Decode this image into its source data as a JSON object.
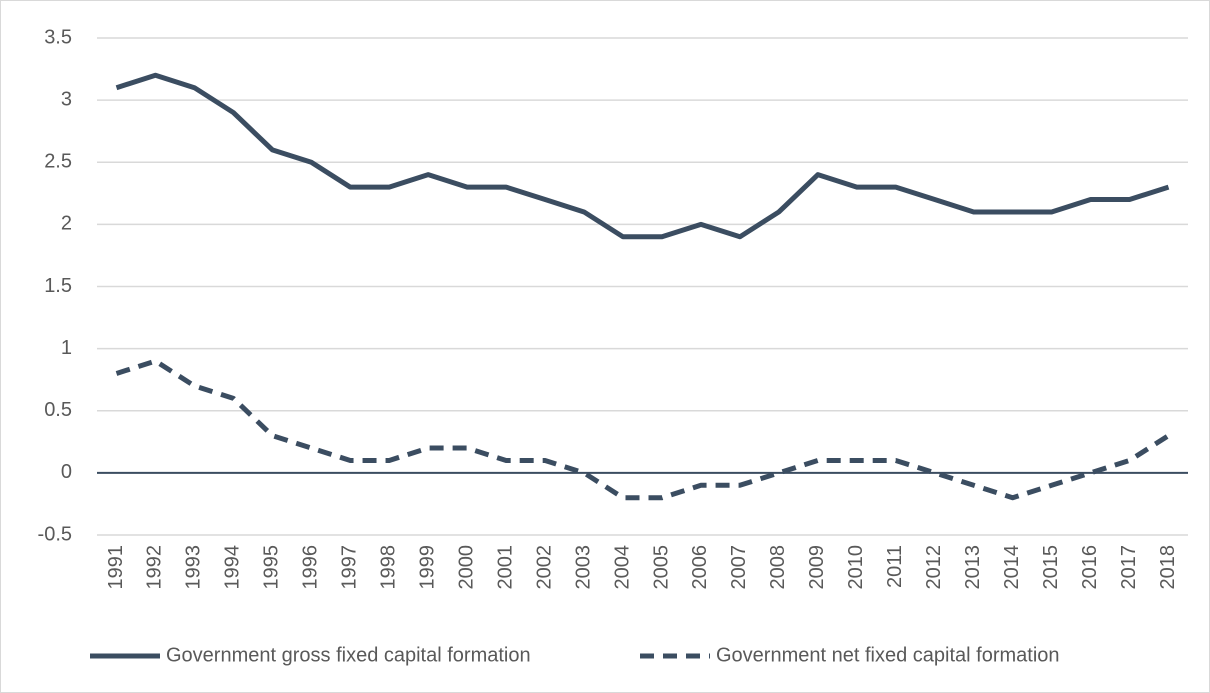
{
  "chart_data": {
    "type": "line",
    "categories": [
      "1991",
      "1992",
      "1993",
      "1994",
      "1995",
      "1996",
      "1997",
      "1998",
      "1999",
      "2000",
      "2001",
      "2002",
      "2003",
      "2004",
      "2005",
      "2006",
      "2007",
      "2008",
      "2009",
      "2010",
      "2011",
      "2012",
      "2013",
      "2014",
      "2015",
      "2016",
      "2017",
      "2018"
    ],
    "series": [
      {
        "name": "Government gross fixed capital formation",
        "color": "#3b4d61",
        "line_style": "solid",
        "values": [
          3.1,
          3.2,
          3.1,
          2.9,
          2.6,
          2.5,
          2.3,
          2.3,
          2.4,
          2.3,
          2.3,
          2.2,
          2.1,
          1.9,
          1.9,
          2.0,
          1.9,
          2.1,
          2.4,
          2.3,
          2.3,
          2.2,
          2.1,
          2.1,
          2.1,
          2.2,
          2.2,
          2.3
        ]
      },
      {
        "name": "Government net fixed capital formation",
        "color": "#3b4d61",
        "line_style": "dashed",
        "values": [
          0.8,
          0.9,
          0.7,
          0.6,
          0.3,
          0.2,
          0.1,
          0.1,
          0.2,
          0.2,
          0.1,
          0.1,
          0.0,
          -0.2,
          -0.2,
          -0.1,
          -0.1,
          0.0,
          0.1,
          0.1,
          0.1,
          0.0,
          -0.1,
          -0.2,
          -0.1,
          0.0,
          0.1,
          0.3
        ]
      }
    ],
    "ylim": [
      -0.5,
      3.5
    ],
    "yticks": [
      -0.5,
      0,
      0.5,
      1,
      1.5,
      2,
      2.5,
      3,
      3.5
    ],
    "grid": true,
    "legend": "bottom"
  }
}
